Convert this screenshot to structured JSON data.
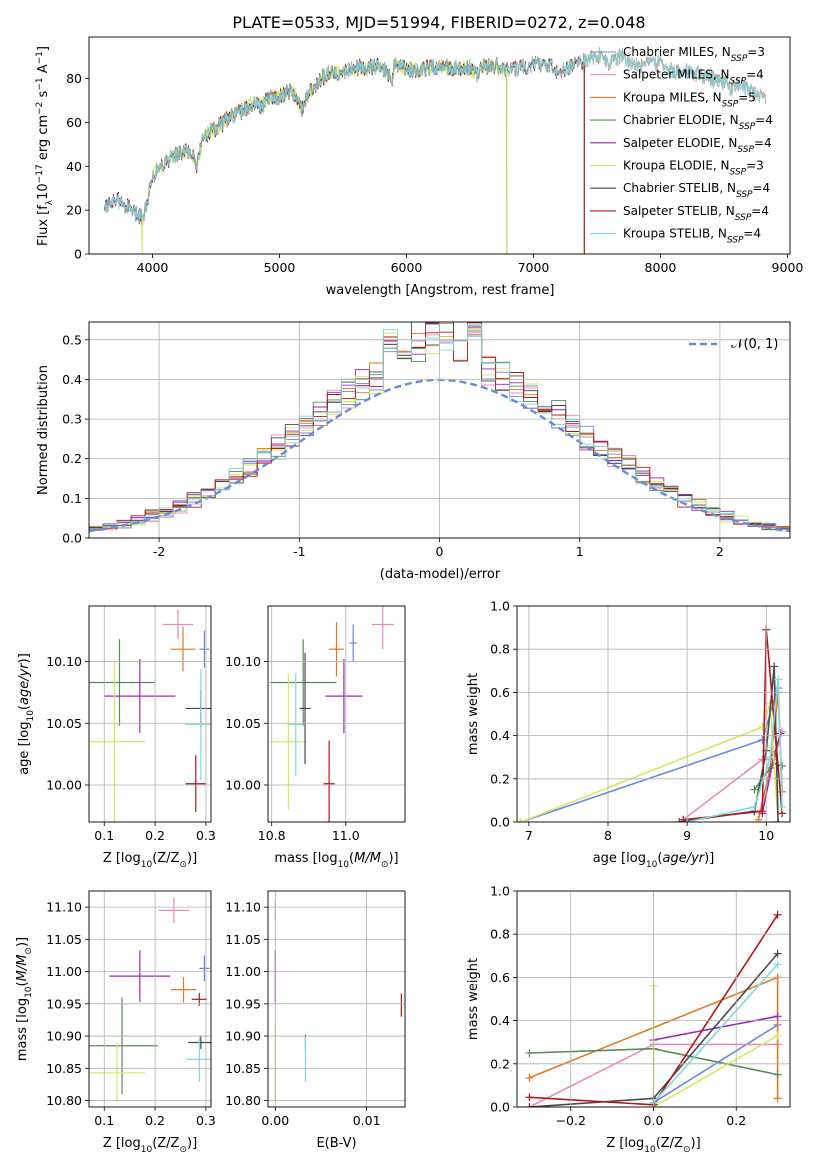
{
  "figure_title": "PLATE=0533, MJD=51994, FIBERID=0272, z=0.048",
  "colors": {
    "Chabrier MILES": "#6a8ad8",
    "Salpeter MILES": "#e88cc0",
    "Kroupa MILES": "#e07a24",
    "Chabrier ELODIE": "#5a8a5a",
    "Salpeter ELODIE": "#9a2ab0",
    "Kroupa ELODIE": "#d4e860",
    "Chabrier STELIB": "#4a4a4a",
    "Salpeter STELIB": "#b01818",
    "Kroupa STELIB": "#80d8e0",
    "grid": "#b0b0b0"
  },
  "chart_data": [
    {
      "id": "spectrum",
      "type": "line",
      "xlabel": "wavelength [Angstrom, rest frame]",
      "ylabel": "Flux [f_λ10^-17 erg cm^-2 s^-1 A^-1]",
      "xlim": [
        3500,
        9020
      ],
      "ylim": [
        0,
        99
      ],
      "xticks": [
        4000,
        5000,
        6000,
        7000,
        8000,
        9000
      ],
      "yticks": [
        0,
        20,
        40,
        60,
        80
      ],
      "grid": false,
      "legend_position": "top-right",
      "series": [
        {
          "name": "Chabrier MILES",
          "nssp": "3",
          "start": 3620,
          "end": 8830,
          "cut_at": null
        },
        {
          "name": "Salpeter MILES",
          "nssp": "4",
          "start": 3620,
          "end": 8830,
          "cut_at": null
        },
        {
          "name": "Kroupa MILES",
          "nssp": "5",
          "start": 3620,
          "end": 8830,
          "cut_at": null
        },
        {
          "name": "Chabrier ELODIE",
          "nssp": "4",
          "start": 3620,
          "end": 6790,
          "cut_at": null
        },
        {
          "name": "Salpeter ELODIE",
          "nssp": "4",
          "start": 3620,
          "end": 6790,
          "cut_at": null
        },
        {
          "name": "Kroupa ELODIE",
          "nssp": "3",
          "start": 3910,
          "end": 6790,
          "cut_at": 3920
        },
        {
          "name": "Chabrier STELIB",
          "nssp": "4",
          "start": 3620,
          "end": 7400,
          "cut_at": null
        },
        {
          "name": "Salpeter STELIB",
          "nssp": "4",
          "start": 3620,
          "end": 7400,
          "cut_at": null
        },
        {
          "name": "Kroupa STELIB",
          "nssp": "4",
          "start": 3620,
          "end": 8830,
          "cut_at": null
        }
      ],
      "continuum": [
        [
          3620,
          22
        ],
        [
          3700,
          25
        ],
        [
          3800,
          22
        ],
        [
          3870,
          18
        ],
        [
          3930,
          17
        ],
        [
          4000,
          36
        ],
        [
          4100,
          42
        ],
        [
          4200,
          46
        ],
        [
          4300,
          47
        ],
        [
          4350,
          39
        ],
        [
          4400,
          54
        ],
        [
          4500,
          57
        ],
        [
          4600,
          62
        ],
        [
          4700,
          65
        ],
        [
          4800,
          69
        ],
        [
          4860,
          67
        ],
        [
          4900,
          71
        ],
        [
          5000,
          72
        ],
        [
          5100,
          75
        ],
        [
          5175,
          66
        ],
        [
          5200,
          70
        ],
        [
          5300,
          79
        ],
        [
          5400,
          83
        ],
        [
          5500,
          83
        ],
        [
          5600,
          85
        ],
        [
          5700,
          85
        ],
        [
          5800,
          86
        ],
        [
          5890,
          79
        ],
        [
          5900,
          87
        ],
        [
          6000,
          84
        ],
        [
          6100,
          84
        ],
        [
          6200,
          85
        ],
        [
          6300,
          85
        ],
        [
          6400,
          85
        ],
        [
          6500,
          85
        ],
        [
          6563,
          81
        ],
        [
          6600,
          86
        ],
        [
          6700,
          86
        ],
        [
          6800,
          84
        ],
        [
          6900,
          85
        ],
        [
          7000,
          86
        ],
        [
          7100,
          87
        ],
        [
          7200,
          83
        ],
        [
          7300,
          86
        ],
        [
          7400,
          88
        ],
        [
          7500,
          91
        ],
        [
          7600,
          87
        ],
        [
          7700,
          91
        ],
        [
          7800,
          86
        ],
        [
          7900,
          86
        ],
        [
          8000,
          87
        ],
        [
          8100,
          83
        ],
        [
          8200,
          83
        ],
        [
          8300,
          82
        ],
        [
          8400,
          80
        ],
        [
          8500,
          78
        ],
        [
          8550,
          75
        ],
        [
          8600,
          79
        ],
        [
          8700,
          74
        ],
        [
          8830,
          72
        ]
      ]
    },
    {
      "id": "residuals",
      "type": "histogram",
      "xlabel": "(data-model)/error",
      "ylabel": "Normed distribution",
      "xlim": [
        -2.5,
        2.5
      ],
      "ylim": [
        0,
        0.545
      ],
      "xticks": [
        -2,
        -1,
        0,
        1,
        2
      ],
      "yticks": [
        0.0,
        0.1,
        0.2,
        0.3,
        0.4,
        0.5
      ],
      "grid": true,
      "legend_position": "top-right",
      "legend_label": "N(0,1)",
      "bin_width": 0.1,
      "curve": "standard normal pdf"
    },
    {
      "id": "age_vs_Z",
      "type": "errorbar",
      "xlabel": "Z [log10(Z/Z⊙)]",
      "ylabel": "age  [log10(age/yr)]",
      "xlim": [
        0.07,
        0.31
      ],
      "ylim": [
        9.97,
        10.145
      ],
      "xticks": [
        0.1,
        0.2,
        0.3
      ],
      "yticks": [
        10.0,
        10.05,
        10.1
      ],
      "grid": true,
      "points": [
        {
          "series": "Chabrier MILES",
          "x": 0.297,
          "xerr": 0.01,
          "y": 10.11,
          "yerr": 0.015
        },
        {
          "series": "Salpeter MILES",
          "x": 0.245,
          "xerr": 0.03,
          "y": 10.13,
          "yerr": 0.012
        },
        {
          "series": "Kroupa MILES",
          "x": 0.255,
          "xerr": 0.025,
          "y": 10.11,
          "yerr": 0.018
        },
        {
          "series": "Chabrier ELODIE",
          "x": 0.13,
          "xerr": 0.07,
          "y": 10.083,
          "yerr": 0.035
        },
        {
          "series": "Salpeter ELODIE",
          "x": 0.17,
          "xerr": 0.07,
          "y": 10.072,
          "yerr": 0.03
        },
        {
          "series": "Kroupa ELODIE",
          "x": 0.12,
          "xerr": 0.06,
          "y": 10.035,
          "yerr": 0.065
        },
        {
          "series": "Chabrier STELIB",
          "x": 0.29,
          "xerr": 0.03,
          "y": 10.062,
          "yerr": 0.015
        },
        {
          "series": "Salpeter STELIB",
          "x": 0.28,
          "xerr": 0.02,
          "y": 10.001,
          "yerr": 0.023
        },
        {
          "series": "Kroupa STELIB",
          "x": 0.29,
          "xerr": 0.03,
          "y": 10.049,
          "yerr": 0.045
        }
      ]
    },
    {
      "id": "age_vs_mass",
      "type": "errorbar",
      "xlabel": "mass [log10(M/M⊙)]",
      "ylabel": "",
      "xlim": [
        10.79,
        11.16
      ],
      "ylim": [
        9.97,
        10.145
      ],
      "xticks": [
        10.8,
        11.0
      ],
      "yticks": [
        10.0,
        10.05,
        10.1
      ],
      "grid": true,
      "points": [
        {
          "series": "Chabrier MILES",
          "x": 11.02,
          "xerr": 0.01,
          "y": 10.115,
          "yerr": 0.015
        },
        {
          "series": "Salpeter MILES",
          "x": 11.1,
          "xerr": 0.03,
          "y": 10.13,
          "yerr": 0.02
        },
        {
          "series": "Kroupa MILES",
          "x": 10.975,
          "xerr": 0.02,
          "y": 10.11,
          "yerr": 0.022
        },
        {
          "series": "Chabrier ELODIE",
          "x": 10.885,
          "xerr": 0.09,
          "y": 10.083,
          "yerr": 0.035
        },
        {
          "series": "Salpeter ELODIE",
          "x": 10.995,
          "xerr": 0.05,
          "y": 10.072,
          "yerr": 0.03
        },
        {
          "series": "Kroupa ELODIE",
          "x": 10.845,
          "xerr": 0.05,
          "y": 10.035,
          "yerr": 0.055
        },
        {
          "series": "Chabrier STELIB",
          "x": 10.89,
          "xerr": 0.015,
          "y": 10.062,
          "yerr": 0.045
        },
        {
          "series": "Salpeter STELIB",
          "x": 10.955,
          "xerr": 0.015,
          "y": 10.001,
          "yerr": 0.035
        },
        {
          "series": "Kroupa STELIB",
          "x": 10.865,
          "xerr": 0.02,
          "y": 10.049,
          "yerr": 0.042
        }
      ]
    },
    {
      "id": "mass_weight_vs_age",
      "type": "line",
      "xlabel": "age  [log10(age/yr)]",
      "ylabel": "mass weight",
      "xlim": [
        6.85,
        10.3
      ],
      "ylim": [
        0,
        1
      ],
      "xticks": [
        7,
        8,
        9,
        10
      ],
      "yticks": [
        0.0,
        0.2,
        0.4,
        0.6,
        0.8,
        1.0
      ],
      "grid": true,
      "series": [
        {
          "name": "Chabrier MILES",
          "x": [
            6.9,
            9.95,
            10.15
          ],
          "y": [
            0.0,
            0.38,
            0.62
          ]
        },
        {
          "name": "Salpeter MILES",
          "x": [
            8.95,
            9.95,
            10.1,
            10.2
          ],
          "y": [
            0.01,
            0.29,
            0.29,
            0.42
          ]
        },
        {
          "name": "Kroupa MILES",
          "x": [
            9.9,
            10.05,
            10.15,
            10.2
          ],
          "y": [
            0.01,
            0.25,
            0.6,
            0.14
          ]
        },
        {
          "name": "Chabrier ELODIE",
          "x": [
            9.85,
            10.05,
            10.1,
            10.2
          ],
          "y": [
            0.15,
            0.25,
            0.27,
            0.26
          ]
        },
        {
          "name": "Salpeter ELODIE",
          "x": [
            9.95,
            10.1,
            10.18
          ],
          "y": [
            0.04,
            0.31,
            0.41
          ]
        },
        {
          "name": "Kroupa ELODIE",
          "x": [
            6.9,
            9.95,
            10.05,
            10.15
          ],
          "y": [
            0.0,
            0.44,
            0.55,
            0.0
          ]
        },
        {
          "name": "Chabrier STELIB",
          "x": [
            8.9,
            9.85,
            10.0,
            10.1,
            10.15
          ],
          "y": [
            0.0,
            0.05,
            0.33,
            0.72,
            0.0
          ]
        },
        {
          "name": "Salpeter STELIB",
          "x": [
            8.95,
            9.95,
            10.0,
            10.2
          ],
          "y": [
            0.01,
            0.05,
            0.89,
            0.04
          ]
        },
        {
          "name": "Kroupa STELIB",
          "x": [
            9.0,
            9.85,
            10.05,
            10.15,
            10.2
          ],
          "y": [
            0.0,
            0.07,
            0.3,
            0.66,
            0.07
          ]
        }
      ]
    },
    {
      "id": "mass_vs_Z",
      "type": "errorbar",
      "xlabel": "Z [log10(Z/Z⊙)]",
      "ylabel": "mass [log10(M/M⊙)]",
      "xlim": [
        0.07,
        0.31
      ],
      "ylim": [
        10.79,
        11.125
      ],
      "xticks": [
        0.1,
        0.2,
        0.3
      ],
      "yticks": [
        10.8,
        10.85,
        10.9,
        10.95,
        11.0,
        11.05,
        11.1
      ],
      "grid": true,
      "points": [
        {
          "series": "Chabrier MILES",
          "x": 0.297,
          "xerr": 0.01,
          "y": 11.005,
          "yerr": 0.02
        },
        {
          "series": "Salpeter MILES",
          "x": 0.237,
          "xerr": 0.03,
          "y": 11.095,
          "yerr": 0.02
        },
        {
          "series": "Kroupa MILES",
          "x": 0.256,
          "xerr": 0.025,
          "y": 10.972,
          "yerr": 0.02
        },
        {
          "series": "Chabrier ELODIE",
          "x": 0.135,
          "xerr": 0.07,
          "y": 10.885,
          "yerr": 0.075
        },
        {
          "series": "Salpeter ELODIE",
          "x": 0.17,
          "xerr": 0.06,
          "y": 10.993,
          "yerr": 0.04
        },
        {
          "series": "Kroupa ELODIE",
          "x": 0.125,
          "xerr": 0.055,
          "y": 10.843,
          "yerr": 0.045
        },
        {
          "series": "Chabrier STELIB",
          "x": 0.29,
          "xerr": 0.025,
          "y": 10.89,
          "yerr": 0.01
        },
        {
          "series": "Salpeter STELIB",
          "x": 0.287,
          "xerr": 0.015,
          "y": 10.957,
          "yerr": 0.01
        },
        {
          "series": "Kroupa STELIB",
          "x": 0.287,
          "xerr": 0.025,
          "y": 10.864,
          "yerr": 0.035
        }
      ]
    },
    {
      "id": "mass_vs_ebv",
      "type": "errorbar",
      "xlabel": "E(B-V)",
      "ylabel": "",
      "xlim": [
        -0.0008,
        0.0142
      ],
      "ylim": [
        10.79,
        11.125
      ],
      "xticks": [
        0.0,
        0.01
      ],
      "yticks": [
        10.8,
        10.85,
        10.9,
        10.95,
        11.0,
        11.05,
        11.1
      ],
      "grid": true,
      "points": [
        {
          "series": "Salpeter MILES",
          "x": 0.0,
          "xerr": 0.0,
          "y": 11.095,
          "yerr": 0.015
        },
        {
          "series": "Salpeter ELODIE",
          "x": 0.0,
          "xerr": 0.0,
          "y": 10.993,
          "yerr": 0.04
        },
        {
          "series": "Kroupa ELODIE",
          "x": 0.0,
          "xerr": 0.0,
          "y": 10.86,
          "yerr": 0.06
        },
        {
          "series": "Chabrier STELIB",
          "x": 0.0033,
          "xerr": 0.0,
          "y": 10.89,
          "yerr": 0.012
        },
        {
          "series": "Kroupa STELIB",
          "x": 0.0033,
          "xerr": 0.0,
          "y": 10.864,
          "yerr": 0.035
        },
        {
          "series": "Salpeter STELIB",
          "x": 0.0138,
          "xerr": 0.0,
          "y": 10.948,
          "yerr": 0.018
        }
      ]
    },
    {
      "id": "mass_weight_vs_Z",
      "type": "line",
      "xlabel": "Z [log10(Z/Z⊙)]",
      "ylabel": "mass weight",
      "xlim": [
        -0.33,
        0.33
      ],
      "ylim": [
        0,
        1
      ],
      "xticks": [
        -0.2,
        0.0,
        0.2
      ],
      "yticks": [
        0.0,
        0.2,
        0.4,
        0.6,
        0.8,
        1.0
      ],
      "grid": true,
      "series": [
        {
          "name": "Chabrier MILES",
          "x": [
            0.0,
            0.3
          ],
          "y": [
            0.02,
            0.38
          ]
        },
        {
          "name": "Salpeter MILES",
          "x": [
            -0.3,
            0.0,
            0.3
          ],
          "y": [
            0.0,
            0.29,
            0.29
          ]
        },
        {
          "name": "Kroupa MILES",
          "x": [
            -0.3,
            0.3,
            0.3
          ],
          "y": [
            0.135,
            0.6,
            0.04
          ]
        },
        {
          "name": "Chabrier ELODIE",
          "x": [
            -0.3,
            0.0,
            0.3
          ],
          "y": [
            0.25,
            0.27,
            0.15
          ]
        },
        {
          "name": "Salpeter ELODIE",
          "x": [
            0.0,
            0.3
          ],
          "y": [
            0.31,
            0.42
          ]
        },
        {
          "name": "Kroupa ELODIE",
          "x": [
            0.0,
            0.0,
            0.3
          ],
          "y": [
            0.56,
            0.0,
            0.33
          ]
        },
        {
          "name": "Chabrier STELIB",
          "x": [
            -0.3,
            0.0,
            0.3
          ],
          "y": [
            0.0,
            0.04,
            0.71
          ]
        },
        {
          "name": "Salpeter STELIB",
          "x": [
            -0.3,
            0.0,
            0.3
          ],
          "y": [
            0.045,
            0.01,
            0.89
          ]
        },
        {
          "name": "Kroupa STELIB",
          "x": [
            0.0,
            0.3
          ],
          "y": [
            0.02,
            0.66
          ]
        }
      ]
    }
  ]
}
